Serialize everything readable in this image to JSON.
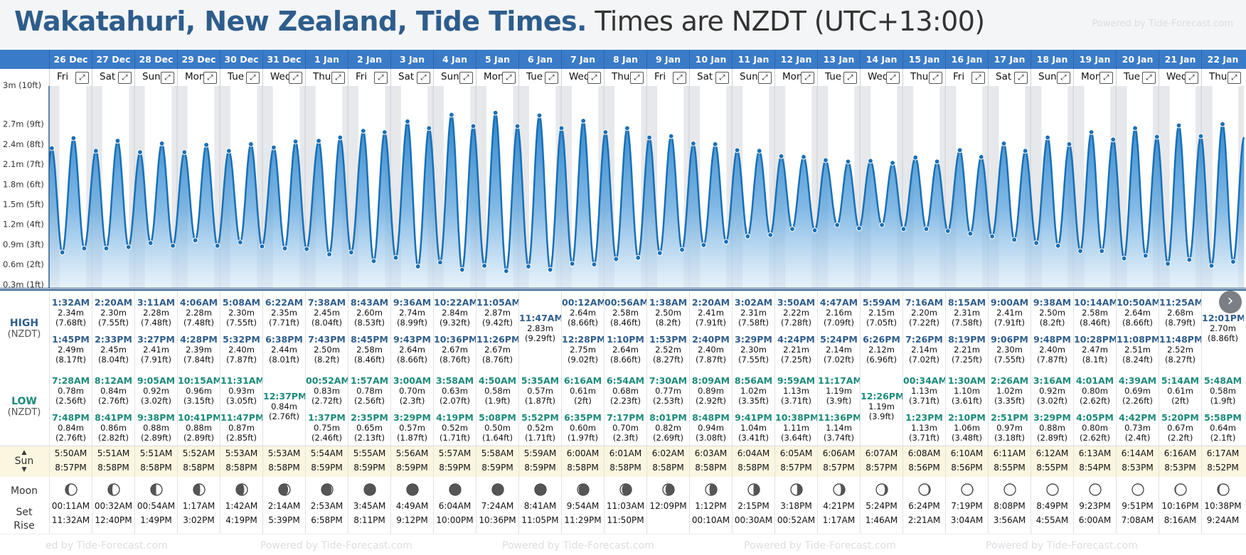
{
  "header": {
    "title": "Wakatahuri, New Zealand, Tide Times.",
    "subtitle": "Times are NZDT (UTC+13:00)",
    "powered": "Powered by Tide-Forecast.com"
  },
  "y_axis": {
    "unit": "m",
    "ticks": [
      "2.7m (9ft)",
      "2.4m (8ft)",
      "2.1m (7ft)",
      "1.8m (6ft)",
      "1.5m (5ft)",
      "1.2m (4ft)",
      "0.9m (3ft)",
      "0.6m (2ft)",
      "0.3m (1ft)"
    ],
    "tick_values": [
      2.7,
      2.4,
      2.1,
      1.8,
      1.5,
      1.2,
      0.9,
      0.6,
      0.3
    ],
    "top_label": "3m (10ft)"
  },
  "labels": {
    "high": "HIGH",
    "high_sub": "(NZDT)",
    "low": "LOW",
    "low_sub": "(NZDT)",
    "sun": "Sun",
    "moon": "Moon",
    "set": "Set",
    "rise": "Rise",
    "expand": "⤢",
    "next": "›"
  },
  "days": [
    {
      "date": "26 Dec",
      "dow": "Fri",
      "high": [
        [
          "1:32AM",
          "2.34m",
          "(7.68ft)"
        ],
        [
          "1:45PM",
          "2.49m",
          "(8.17ft)"
        ]
      ],
      "low": [
        [
          "7:28AM",
          "0.78m",
          "(2.56ft)"
        ],
        [
          "7:48PM",
          "0.84m",
          "(2.76ft)"
        ]
      ],
      "sunrise": "5:50AM",
      "sunset": "8:57PM",
      "moonset": "00:11AM",
      "moonrise": "11:32AM",
      "moon_phase": 0.18
    },
    {
      "date": "27 Dec",
      "dow": "Sat",
      "high": [
        [
          "2:20AM",
          "2.30m",
          "(7.55ft)"
        ],
        [
          "2:33PM",
          "2.45m",
          "(8.04ft)"
        ]
      ],
      "low": [
        [
          "8:12AM",
          "0.84m",
          "(2.76ft)"
        ],
        [
          "8:41PM",
          "0.86m",
          "(2.82ft)"
        ]
      ],
      "sunrise": "5:51AM",
      "sunset": "8:58PM",
      "moonset": "00:32AM",
      "moonrise": "12:40PM",
      "moon_phase": 0.21
    },
    {
      "date": "28 Dec",
      "dow": "Sun",
      "high": [
        [
          "3:11AM",
          "2.28m",
          "(7.48ft)"
        ],
        [
          "3:27PM",
          "2.41m",
          "(7.91ft)"
        ]
      ],
      "low": [
        [
          "9:05AM",
          "0.92m",
          "(3.02ft)"
        ],
        [
          "9:38PM",
          "0.88m",
          "(2.89ft)"
        ]
      ],
      "sunrise": "5:51AM",
      "sunset": "8:58PM",
      "moonset": "00:54AM",
      "moonrise": "1:49PM",
      "moon_phase": 0.24
    },
    {
      "date": "29 Dec",
      "dow": "Mon",
      "high": [
        [
          "4:06AM",
          "2.28m",
          "(7.48ft)"
        ],
        [
          "4:28PM",
          "2.39m",
          "(7.84ft)"
        ]
      ],
      "low": [
        [
          "10:15AM",
          "0.96m",
          "(3.15ft)"
        ],
        [
          "10:41PM",
          "0.88m",
          "(2.89ft)"
        ]
      ],
      "sunrise": "5:52AM",
      "sunset": "8:58PM",
      "moonset": "1:17AM",
      "moonrise": "3:02PM",
      "moon_phase": 0.28
    },
    {
      "date": "30 Dec",
      "dow": "Tue",
      "high": [
        [
          "5:08AM",
          "2.30m",
          "(7.55ft)"
        ],
        [
          "5:32PM",
          "2.40m",
          "(7.87ft)"
        ]
      ],
      "low": [
        [
          "11:31AM",
          "0.93m",
          "(3.05ft)"
        ],
        [
          "11:47PM",
          "0.87m",
          "(2.85ft)"
        ]
      ],
      "sunrise": "5:53AM",
      "sunset": "8:58PM",
      "moonset": "1:42AM",
      "moonrise": "4:19PM",
      "moon_phase": 0.32
    },
    {
      "date": "31 Dec",
      "dow": "Wed",
      "high": [
        [
          "6:22AM",
          "2.35m",
          "(7.71ft)"
        ],
        [
          "6:38PM",
          "2.44m",
          "(8.01ft)"
        ]
      ],
      "low": [
        [
          "12:37PM",
          "0.84m",
          "(2.76ft)"
        ]
      ],
      "sunrise": "5:53AM",
      "sunset": "8:58PM",
      "moonset": "2:14AM",
      "moonrise": "5:39PM",
      "moon_phase": 0.36
    },
    {
      "date": "1 Jan",
      "dow": "Thu",
      "high": [
        [
          "7:38AM",
          "2.45m",
          "(8.04ft)"
        ],
        [
          "7:43PM",
          "2.50m",
          "(8.2ft)"
        ]
      ],
      "low": [
        [
          "00:52AM",
          "0.83m",
          "(2.72ft)"
        ],
        [
          "1:37PM",
          "0.75m",
          "(2.46ft)"
        ]
      ],
      "sunrise": "5:54AM",
      "sunset": "8:59PM",
      "moonset": "2:53AM",
      "moonrise": "6:58PM",
      "moon_phase": 0.4
    },
    {
      "date": "2 Jan",
      "dow": "Fri",
      "high": [
        [
          "8:43AM",
          "2.60m",
          "(8.53ft)"
        ],
        [
          "8:45PM",
          "2.58m",
          "(8.46ft)"
        ]
      ],
      "low": [
        [
          "1:57AM",
          "0.78m",
          "(2.56ft)"
        ],
        [
          "2:35PM",
          "0.65m",
          "(2.13ft)"
        ]
      ],
      "sunrise": "5:55AM",
      "sunset": "8:59PM",
      "moonset": "3:45AM",
      "moonrise": "8:11PM",
      "moon_phase": 0.44
    },
    {
      "date": "3 Jan",
      "dow": "Sat",
      "high": [
        [
          "9:36AM",
          "2.74m",
          "(8.99ft)"
        ],
        [
          "9:43PM",
          "2.64m",
          "(8.66ft)"
        ]
      ],
      "low": [
        [
          "3:00AM",
          "0.70m",
          "(2.3ft)"
        ],
        [
          "3:29PM",
          "0.57m",
          "(1.87ft)"
        ]
      ],
      "sunrise": "5:56AM",
      "sunset": "8:59PM",
      "moonset": "4:49AM",
      "moonrise": "9:12PM",
      "moon_phase": 0.47
    },
    {
      "date": "4 Jan",
      "dow": "Sun",
      "high": [
        [
          "10:22AM",
          "2.84m",
          "(9.32ft)"
        ],
        [
          "10:36PM",
          "2.67m",
          "(8.76ft)"
        ]
      ],
      "low": [
        [
          "3:58AM",
          "0.63m",
          "(2.07ft)"
        ],
        [
          "4:19PM",
          "0.52m",
          "(1.71ft)"
        ]
      ],
      "sunrise": "5:57AM",
      "sunset": "8:59PM",
      "moonset": "6:04AM",
      "moonrise": "10:00PM",
      "moon_phase": 0.5
    },
    {
      "date": "5 Jan",
      "dow": "Mon",
      "high": [
        [
          "11:05AM",
          "2.87m",
          "(9.42ft)"
        ],
        [
          "11:26PM",
          "2.67m",
          "(8.76ft)"
        ]
      ],
      "low": [
        [
          "4:50AM",
          "0.58m",
          "(1.9ft)"
        ],
        [
          "5:08PM",
          "0.50m",
          "(1.64ft)"
        ]
      ],
      "sunrise": "5:58AM",
      "sunset": "8:59PM",
      "moonset": "7:24AM",
      "moonrise": "10:36PM",
      "moon_phase": 0.53
    },
    {
      "date": "6 Jan",
      "dow": "Tue",
      "high": [
        [
          "11:47AM",
          "2.83m",
          "(9.29ft)"
        ]
      ],
      "low": [
        [
          "5:35AM",
          "0.57m",
          "(1.87ft)"
        ],
        [
          "5:52PM",
          "0.52m",
          "(1.71ft)"
        ]
      ],
      "sunrise": "5:59AM",
      "sunset": "8:59PM",
      "moonset": "8:41AM",
      "moonrise": "11:05PM",
      "moon_phase": 0.56
    },
    {
      "date": "7 Jan",
      "dow": "Wed",
      "high": [
        [
          "00:12AM",
          "2.64m",
          "(8.66ft)"
        ],
        [
          "12:28PM",
          "2.75m",
          "(9.02ft)"
        ]
      ],
      "low": [
        [
          "6:16AM",
          "0.61m",
          "(2ft)"
        ],
        [
          "6:35PM",
          "0.60m",
          "(1.97ft)"
        ]
      ],
      "sunrise": "6:00AM",
      "sunset": "8:58PM",
      "moonset": "9:54AM",
      "moonrise": "11:29PM",
      "moon_phase": 0.6
    },
    {
      "date": "8 Jan",
      "dow": "Thu",
      "high": [
        [
          "00:56AM",
          "2.58m",
          "(8.46ft)"
        ],
        [
          "1:10PM",
          "2.64m",
          "(8.66ft)"
        ]
      ],
      "low": [
        [
          "6:54AM",
          "0.68m",
          "(2.23ft)"
        ],
        [
          "7:17PM",
          "0.70m",
          "(2.3ft)"
        ]
      ],
      "sunrise": "6:01AM",
      "sunset": "8:58PM",
      "moonset": "11:03AM",
      "moonrise": "11:50PM",
      "moon_phase": 0.63
    },
    {
      "date": "9 Jan",
      "dow": "Fri",
      "high": [
        [
          "1:38AM",
          "2.50m",
          "(8.2ft)"
        ],
        [
          "1:53PM",
          "2.52m",
          "(8.27ft)"
        ]
      ],
      "low": [
        [
          "7:30AM",
          "0.77m",
          "(2.53ft)"
        ],
        [
          "8:01PM",
          "0.82m",
          "(2.69ft)"
        ]
      ],
      "sunrise": "6:02AM",
      "sunset": "8:58PM",
      "moonset": "12:09PM",
      "moonrise": "",
      "moon_phase": 0.66
    },
    {
      "date": "10 Jan",
      "dow": "Sat",
      "high": [
        [
          "2:20AM",
          "2.41m",
          "(7.91ft)"
        ],
        [
          "2:40PM",
          "2.40m",
          "(7.87ft)"
        ]
      ],
      "low": [
        [
          "8:09AM",
          "0.89m",
          "(2.92ft)"
        ],
        [
          "8:48PM",
          "0.94m",
          "(3.08ft)"
        ]
      ],
      "sunrise": "6:03AM",
      "sunset": "8:58PM",
      "moonset": "1:12PM",
      "moonrise": "00:10AM",
      "moon_phase": 0.7
    },
    {
      "date": "11 Jan",
      "dow": "Sun",
      "high": [
        [
          "3:02AM",
          "2.31m",
          "(7.58ft)"
        ],
        [
          "3:29PM",
          "2.30m",
          "(7.55ft)"
        ]
      ],
      "low": [
        [
          "8:56AM",
          "1.02m",
          "(3.35ft)"
        ],
        [
          "9:41PM",
          "1.04m",
          "(3.41ft)"
        ]
      ],
      "sunrise": "6:04AM",
      "sunset": "8:58PM",
      "moonset": "2:15PM",
      "moonrise": "00:30AM",
      "moon_phase": 0.74
    },
    {
      "date": "12 Jan",
      "dow": "Mon",
      "high": [
        [
          "3:50AM",
          "2.22m",
          "(7.28ft)"
        ],
        [
          "4:24PM",
          "2.21m",
          "(7.25ft)"
        ]
      ],
      "low": [
        [
          "9:59AM",
          "1.13m",
          "(3.71ft)"
        ],
        [
          "10:38PM",
          "1.11m",
          "(3.64ft)"
        ]
      ],
      "sunrise": "6:05AM",
      "sunset": "8:57PM",
      "moonset": "3:18PM",
      "moonrise": "00:52AM",
      "moon_phase": 0.77
    },
    {
      "date": "13 Jan",
      "dow": "Tue",
      "high": [
        [
          "4:47AM",
          "2.16m",
          "(7.09ft)"
        ],
        [
          "5:24PM",
          "2.14m",
          "(7.02ft)"
        ]
      ],
      "low": [
        [
          "11:17AM",
          "1.19m",
          "(3.9ft)"
        ],
        [
          "11:36PM",
          "1.14m",
          "(3.74ft)"
        ]
      ],
      "sunrise": "6:06AM",
      "sunset": "8:57PM",
      "moonset": "4:21PM",
      "moonrise": "1:17AM",
      "moon_phase": 0.8
    },
    {
      "date": "14 Jan",
      "dow": "Wed",
      "high": [
        [
          "5:59AM",
          "2.15m",
          "(7.05ft)"
        ],
        [
          "6:26PM",
          "2.12m",
          "(6.96ft)"
        ]
      ],
      "low": [
        [
          "12:26PM",
          "1.19m",
          "(3.9ft)"
        ]
      ],
      "sunrise": "6:07AM",
      "sunset": "8:57PM",
      "moonset": "5:24PM",
      "moonrise": "1:46AM",
      "moon_phase": 0.84
    },
    {
      "date": "15 Jan",
      "dow": "Thu",
      "high": [
        [
          "7:16AM",
          "2.20m",
          "(7.22ft)"
        ],
        [
          "7:26PM",
          "2.14m",
          "(7.02ft)"
        ]
      ],
      "low": [
        [
          "00:34AM",
          "1.13m",
          "(3.71ft)"
        ],
        [
          "1:23PM",
          "1.13m",
          "(3.71ft)"
        ]
      ],
      "sunrise": "6:08AM",
      "sunset": "8:56PM",
      "moonset": "6:24PM",
      "moonrise": "2:21AM",
      "moon_phase": 0.88
    },
    {
      "date": "16 Jan",
      "dow": "Fri",
      "high": [
        [
          "8:15AM",
          "2.31m",
          "(7.58ft)"
        ],
        [
          "8:19PM",
          "2.21m",
          "(7.25ft)"
        ]
      ],
      "low": [
        [
          "1:30AM",
          "1.10m",
          "(3.61ft)"
        ],
        [
          "2:10PM",
          "1.06m",
          "(3.48ft)"
        ]
      ],
      "sunrise": "6:10AM",
      "sunset": "8:56PM",
      "moonset": "7:19PM",
      "moonrise": "3:04AM",
      "moon_phase": 0.92
    },
    {
      "date": "17 Jan",
      "dow": "Sat",
      "high": [
        [
          "9:00AM",
          "2.41m",
          "(7.91ft)"
        ],
        [
          "9:06PM",
          "2.30m",
          "(7.55ft)"
        ]
      ],
      "low": [
        [
          "2:26AM",
          "1.02m",
          "(3.35ft)"
        ],
        [
          "2:51PM",
          "0.97m",
          "(3.18ft)"
        ]
      ],
      "sunrise": "6:11AM",
      "sunset": "8:55PM",
      "moonset": "8:08PM",
      "moonrise": "3:56AM",
      "moon_phase": 0.96
    },
    {
      "date": "18 Jan",
      "dow": "Sun",
      "high": [
        [
          "9:38AM",
          "2.50m",
          "(8.2ft)"
        ],
        [
          "9:48PM",
          "2.40m",
          "(7.87ft)"
        ]
      ],
      "low": [
        [
          "3:16AM",
          "0.92m",
          "(3.02ft)"
        ],
        [
          "3:29PM",
          "0.88m",
          "(2.89ft)"
        ]
      ],
      "sunrise": "6:12AM",
      "sunset": "8:55PM",
      "moonset": "8:49PM",
      "moonrise": "4:55AM",
      "moon_phase": 0.99
    },
    {
      "date": "19 Jan",
      "dow": "Mon",
      "high": [
        [
          "10:14AM",
          "2.58m",
          "(8.46ft)"
        ],
        [
          "10:28PM",
          "2.47m",
          "(8.1ft)"
        ]
      ],
      "low": [
        [
          "4:01AM",
          "0.80m",
          "(2.62ft)"
        ],
        [
          "4:05PM",
          "0.80m",
          "(2.62ft)"
        ]
      ],
      "sunrise": "6:13AM",
      "sunset": "8:54PM",
      "moonset": "9:23PM",
      "moonrise": "6:00AM",
      "moon_phase": 0.02
    },
    {
      "date": "20 Jan",
      "dow": "Tue",
      "high": [
        [
          "10:50AM",
          "2.64m",
          "(8.66ft)"
        ],
        [
          "11:08PM",
          "2.51m",
          "(8.24ft)"
        ]
      ],
      "low": [
        [
          "4:39AM",
          "0.69m",
          "(2.26ft)"
        ],
        [
          "4:42PM",
          "0.73m",
          "(2.4ft)"
        ]
      ],
      "sunrise": "6:14AM",
      "sunset": "8:53PM",
      "moonset": "9:51PM",
      "moonrise": "7:08AM",
      "moon_phase": 0.06
    },
    {
      "date": "21 Jan",
      "dow": "Wed",
      "high": [
        [
          "11:25AM",
          "2.68m",
          "(8.79ft)"
        ],
        [
          "11:48PM",
          "2.52m",
          "(8.27ft)"
        ]
      ],
      "low": [
        [
          "5:14AM",
          "0.61m",
          "(2ft)"
        ],
        [
          "5:20PM",
          "0.67m",
          "(2.2ft)"
        ]
      ],
      "sunrise": "6:16AM",
      "sunset": "8:53PM",
      "moonset": "10:16PM",
      "moonrise": "8:16AM",
      "moon_phase": 0.1
    },
    {
      "date": "22 Jan",
      "dow": "Thu",
      "high": [
        [
          "12:01PM",
          "2.70m",
          "(8.86ft)"
        ]
      ],
      "low": [
        [
          "5:48AM",
          "0.58m",
          "(1.9ft)"
        ],
        [
          "5:58PM",
          "0.64m",
          "(2.1ft)"
        ]
      ],
      "sunrise": "6:17AM",
      "sunset": "8:52PM",
      "moonset": "10:38PM",
      "moonrise": "9:24AM",
      "moon_phase": 0.13
    }
  ],
  "footer": {
    "text": "Powered by Tide-Forecast.com",
    "partial": "ed by Tide-Forecast.com"
  }
}
